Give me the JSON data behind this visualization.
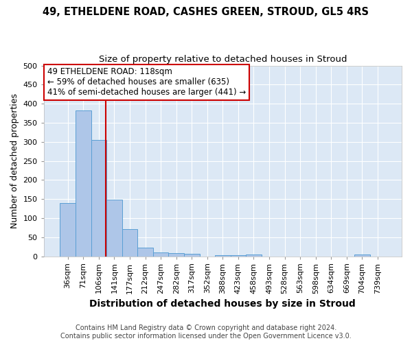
{
  "title1": "49, ETHELDENE ROAD, CASHES GREEN, STROUD, GL5 4RS",
  "title2": "Size of property relative to detached houses in Stroud",
  "xlabel": "Distribution of detached houses by size in Stroud",
  "ylabel": "Number of detached properties",
  "footer": "Contains HM Land Registry data © Crown copyright and database right 2024.\nContains public sector information licensed under the Open Government Licence v3.0.",
  "bar_labels": [
    "36sqm",
    "71sqm",
    "106sqm",
    "141sqm",
    "177sqm",
    "212sqm",
    "247sqm",
    "282sqm",
    "317sqm",
    "352sqm",
    "388sqm",
    "423sqm",
    "458sqm",
    "493sqm",
    "528sqm",
    "563sqm",
    "598sqm",
    "634sqm",
    "669sqm",
    "704sqm",
    "739sqm"
  ],
  "bar_heights": [
    140,
    383,
    305,
    149,
    71,
    23,
    10,
    9,
    7,
    0,
    2,
    3,
    4,
    0,
    0,
    0,
    0,
    0,
    0,
    4,
    0
  ],
  "bar_color": "#aec6e8",
  "bar_edge_color": "#5a9fd4",
  "plot_bg_color": "#dce8f5",
  "fig_bg_color": "#ffffff",
  "grid_color": "#ffffff",
  "vline_x_index": 2.47,
  "vline_color": "#cc0000",
  "annotation_text": "49 ETHELDENE ROAD: 118sqm\n← 59% of detached houses are smaller (635)\n41% of semi-detached houses are larger (441) →",
  "annotation_box_color": "#ffffff",
  "annotation_box_edge_color": "#cc0000",
  "ylim": [
    0,
    500
  ],
  "yticks": [
    0,
    50,
    100,
    150,
    200,
    250,
    300,
    350,
    400,
    450,
    500
  ],
  "title1_fontsize": 10.5,
  "title2_fontsize": 9.5,
  "xlabel_fontsize": 10,
  "ylabel_fontsize": 9,
  "tick_fontsize": 8,
  "annotation_fontsize": 8.5,
  "footer_fontsize": 7
}
